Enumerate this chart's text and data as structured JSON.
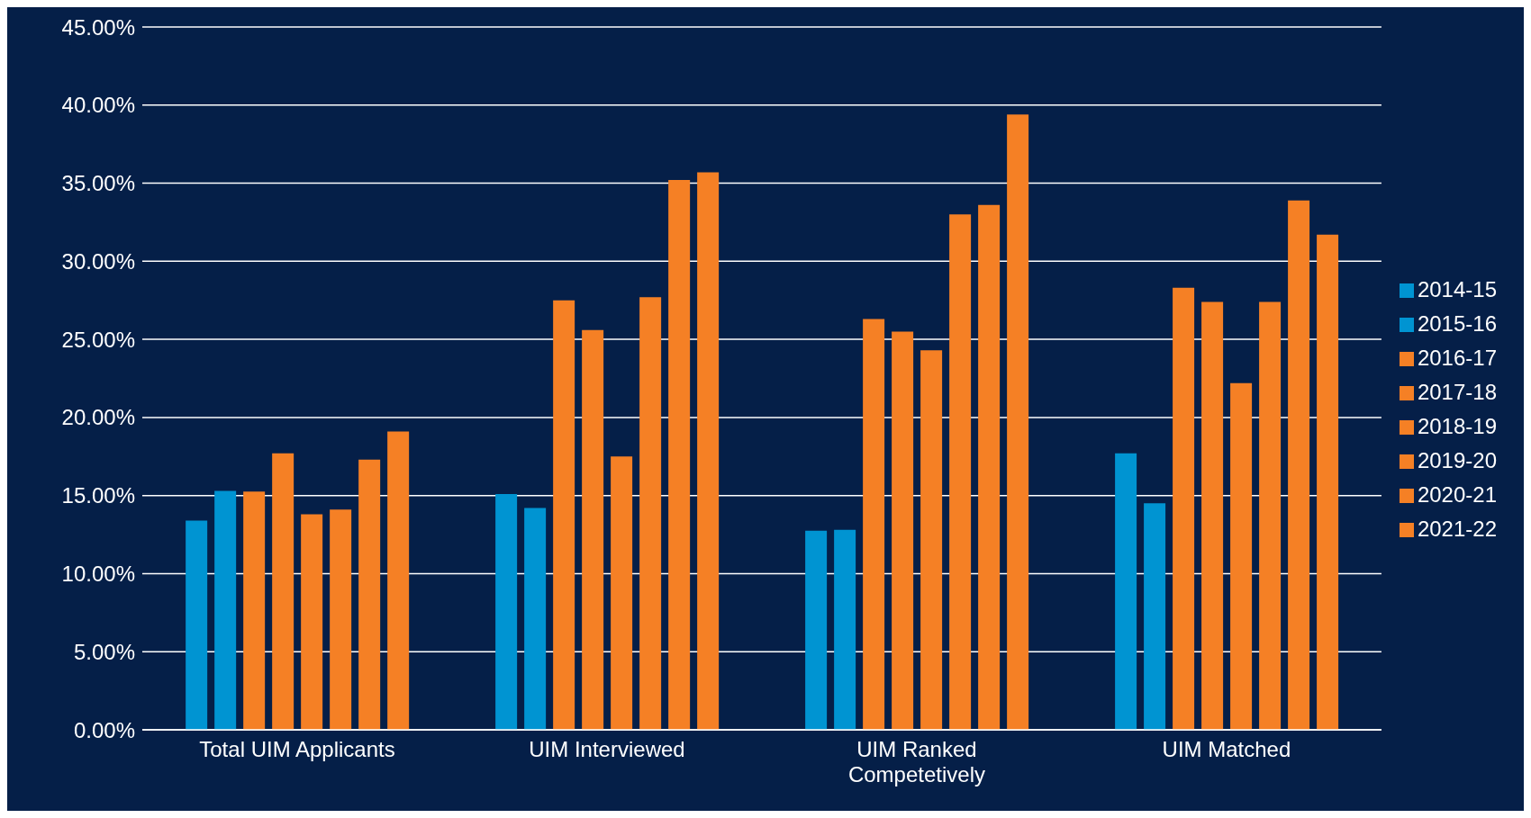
{
  "chart_data": {
    "type": "bar",
    "categories": [
      "Total UIM Applicants",
      "UIM Interviewed",
      "UIM Ranked Competetively",
      "UIM Matched"
    ],
    "series": [
      {
        "name": "2014-15",
        "color": "#0094d2",
        "values": [
          13.4,
          15.1,
          12.75,
          17.7
        ]
      },
      {
        "name": "2015-16",
        "color": "#0094d2",
        "values": [
          15.3,
          14.2,
          12.8,
          14.5
        ]
      },
      {
        "name": "2016-17",
        "color": "#f58025",
        "values": [
          15.25,
          27.5,
          26.3,
          28.3
        ]
      },
      {
        "name": "2017-18",
        "color": "#f58025",
        "values": [
          17.7,
          25.6,
          25.5,
          27.4
        ]
      },
      {
        "name": "2018-19",
        "color": "#f58025",
        "values": [
          13.8,
          17.5,
          24.3,
          22.2
        ]
      },
      {
        "name": "2019-20",
        "color": "#f58025",
        "values": [
          14.1,
          27.7,
          33.0,
          27.4
        ]
      },
      {
        "name": "2020-21",
        "color": "#f58025",
        "values": [
          17.3,
          35.2,
          33.6,
          33.9
        ]
      },
      {
        "name": "2021-22",
        "color": "#f58025",
        "values": [
          19.1,
          35.7,
          39.4,
          31.7
        ]
      }
    ],
    "ylim": [
      0,
      45
    ],
    "yticks": [
      {
        "value": 0,
        "label": "0.00%"
      },
      {
        "value": 5,
        "label": "5.00%"
      },
      {
        "value": 10,
        "label": "10.00%"
      },
      {
        "value": 15,
        "label": "15.00%"
      },
      {
        "value": 20,
        "label": "20.00%"
      },
      {
        "value": 25,
        "label": "25.00%"
      },
      {
        "value": 30,
        "label": "30.00%"
      },
      {
        "value": 35,
        "label": "35.00%"
      },
      {
        "value": 40,
        "label": "40.00%"
      },
      {
        "value": 45,
        "label": "45.00%"
      }
    ],
    "grid": "y",
    "legend": "right"
  }
}
